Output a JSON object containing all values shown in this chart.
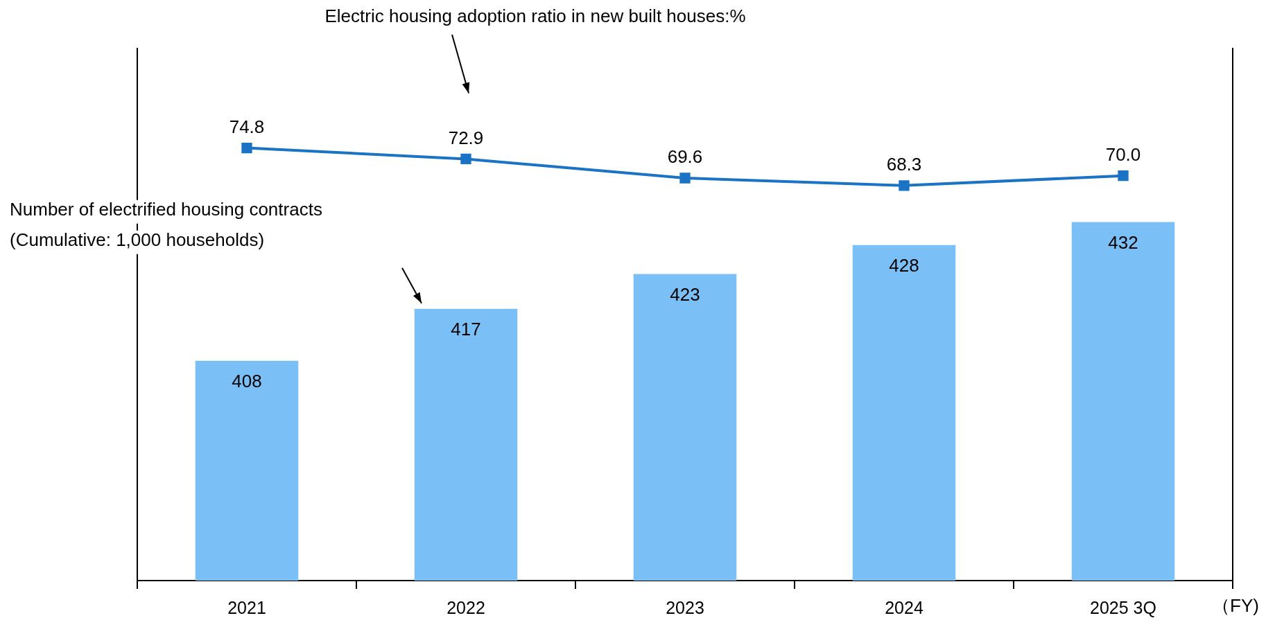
{
  "chart_data": {
    "type": "bar",
    "categories": [
      "2021",
      "2022",
      "2023",
      "2024",
      "2025 3Q"
    ],
    "xlabel": "（FY)",
    "series": [
      {
        "color": "#7bbff7",
        "values": [
          408,
          417,
          423,
          428,
          432
        ]
      },
      {
        "type": "line",
        "axis": "y2",
        "color": "#1a73c5",
        "values": [
          74.8,
          72.9,
          69.6,
          68.3,
          70.0
        ],
        "value_labels": [
          "74.8",
          "72.9",
          "69.6",
          "68.3",
          "70.0"
        ]
      }
    ],
    "annotations": [
      "Electric housing adoption ratio in new built houses:%",
      "Number of electrified housing contracts\n(Cumulative: 1,000 households)"
    ],
    "ylim": [
      370,
      462
    ],
    "y2lim": [
      0,
      92
    ],
    "data_labels": true,
    "marker": "square",
    "line_style": "solid",
    "legend": false,
    "grid": false,
    "tick_labels": "x"
  }
}
